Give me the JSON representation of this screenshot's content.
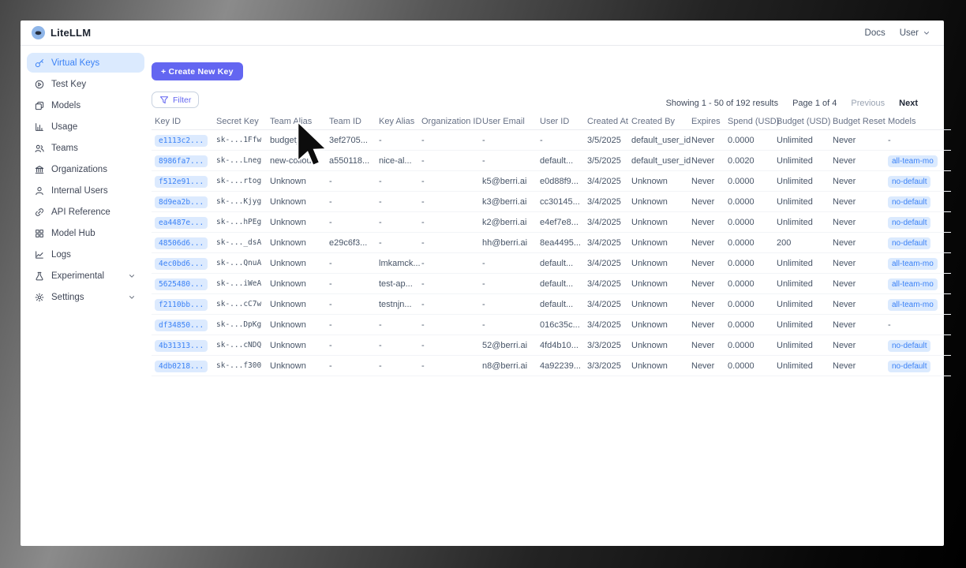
{
  "topnav": {
    "brand": "LiteLLM",
    "docs_link": "Docs",
    "user_menu": "User"
  },
  "sidebar": {
    "items": [
      {
        "label": "Virtual Keys",
        "icon": "key-icon",
        "active": true,
        "chevron": false
      },
      {
        "label": "Test Key",
        "icon": "play-circle-icon",
        "active": false,
        "chevron": false
      },
      {
        "label": "Models",
        "icon": "models-icon",
        "active": false,
        "chevron": false
      },
      {
        "label": "Usage",
        "icon": "usage-chart-icon",
        "active": false,
        "chevron": false
      },
      {
        "label": "Teams",
        "icon": "teams-icon",
        "active": false,
        "chevron": false
      },
      {
        "label": "Organizations",
        "icon": "organization-icon",
        "active": false,
        "chevron": false
      },
      {
        "label": "Internal Users",
        "icon": "user-icon",
        "active": false,
        "chevron": false
      },
      {
        "label": "API Reference",
        "icon": "link-icon",
        "active": false,
        "chevron": false
      },
      {
        "label": "Model Hub",
        "icon": "grid-icon",
        "active": false,
        "chevron": false
      },
      {
        "label": "Logs",
        "icon": "logs-chart-icon",
        "active": false,
        "chevron": false
      },
      {
        "label": "Experimental",
        "icon": "flask-icon",
        "active": false,
        "chevron": true
      },
      {
        "label": "Settings",
        "icon": "gear-icon",
        "active": false,
        "chevron": true
      }
    ]
  },
  "toolbar": {
    "create_key_label": "+ Create New Key",
    "filter_label": "Filter"
  },
  "pagination": {
    "showing": "Showing 1 - 50 of 192 results",
    "page": "Page 1 of 4",
    "previous": "Previous",
    "next": "Next"
  },
  "table": {
    "columns": [
      "Key ID",
      "Secret Key",
      "Team Alias",
      "Team ID",
      "Key Alias",
      "Organization ID",
      "User Email",
      "User ID",
      "Created At",
      "Created By",
      "Expires",
      "Spend (USD)",
      "Budget (USD)",
      "Budget Reset",
      "Models"
    ],
    "rows": [
      [
        "e1113c2...",
        "sk-...1Ffw",
        "budget_tes...",
        "3ef2705...",
        "-",
        "-",
        "-",
        "-",
        "3/5/2025",
        "default_user_id",
        "Never",
        "0.0000",
        "Unlimited",
        "Never",
        "-"
      ],
      [
        "8986fa7...",
        "sk-...Lneg",
        "new-collou...",
        "a550118...",
        "nice-al...",
        "-",
        "-",
        "default...",
        "3/5/2025",
        "default_user_id",
        "Never",
        "0.0020",
        "Unlimited",
        "Never",
        "all-team-mo"
      ],
      [
        "f512e91...",
        "sk-...rtog",
        "Unknown",
        "-",
        "-",
        "-",
        "k5@berri.ai",
        "e0d88f9...",
        "3/4/2025",
        "Unknown",
        "Never",
        "0.0000",
        "Unlimited",
        "Never",
        "no-default"
      ],
      [
        "8d9ea2b...",
        "sk-...Kjyg",
        "Unknown",
        "-",
        "-",
        "-",
        "k3@berri.ai",
        "cc30145...",
        "3/4/2025",
        "Unknown",
        "Never",
        "0.0000",
        "Unlimited",
        "Never",
        "no-default"
      ],
      [
        "ea4487e...",
        "sk-...hPEg",
        "Unknown",
        "-",
        "-",
        "-",
        "k2@berri.ai",
        "e4ef7e8...",
        "3/4/2025",
        "Unknown",
        "Never",
        "0.0000",
        "Unlimited",
        "Never",
        "no-default"
      ],
      [
        "48506d6...",
        "sk-..._dsA",
        "Unknown",
        "e29c6f3...",
        "-",
        "-",
        "hh@berri.ai",
        "8ea4495...",
        "3/4/2025",
        "Unknown",
        "Never",
        "0.0000",
        "200",
        "Never",
        "no-default"
      ],
      [
        "4ec0bd6...",
        "sk-...QnuA",
        "Unknown",
        "-",
        "lmkamck...",
        "-",
        "-",
        "default...",
        "3/4/2025",
        "Unknown",
        "Never",
        "0.0000",
        "Unlimited",
        "Never",
        "all-team-mo"
      ],
      [
        "5625480...",
        "sk-...iWeA",
        "Unknown",
        "-",
        "test-ap...",
        "-",
        "-",
        "default...",
        "3/4/2025",
        "Unknown",
        "Never",
        "0.0000",
        "Unlimited",
        "Never",
        "all-team-mo"
      ],
      [
        "f2110bb...",
        "sk-...cC7w",
        "Unknown",
        "-",
        "testnjn...",
        "-",
        "-",
        "default...",
        "3/4/2025",
        "Unknown",
        "Never",
        "0.0000",
        "Unlimited",
        "Never",
        "all-team-mo"
      ],
      [
        "df34850...",
        "sk-...DpKg",
        "Unknown",
        "-",
        "-",
        "-",
        "-",
        "016c35c...",
        "3/4/2025",
        "Unknown",
        "Never",
        "0.0000",
        "Unlimited",
        "Never",
        "-"
      ],
      [
        "4b31313...",
        "sk-...cNDQ",
        "Unknown",
        "-",
        "-",
        "-",
        "52@berri.ai",
        "4fd4b10...",
        "3/3/2025",
        "Unknown",
        "Never",
        "0.0000",
        "Unlimited",
        "Never",
        "no-default"
      ],
      [
        "4db0218...",
        "sk-...f300",
        "Unknown",
        "-",
        "-",
        "-",
        "n8@berri.ai",
        "4a92239...",
        "3/3/2025",
        "Unknown",
        "Never",
        "0.0000",
        "Unlimited",
        "Never",
        "no-default"
      ]
    ]
  },
  "colors": {
    "accent": "#6366f1",
    "active_blue": "#3b82f6",
    "badge_bg": "#dbeafe"
  }
}
